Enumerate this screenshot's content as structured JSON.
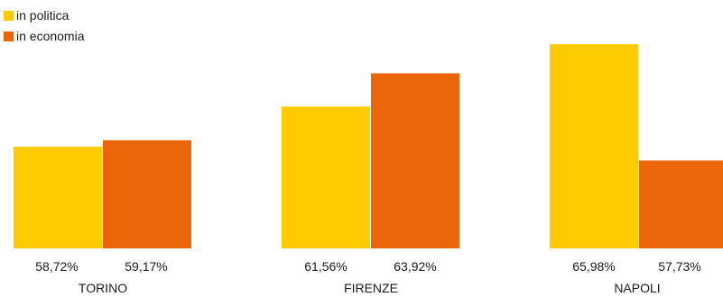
{
  "chart_data": {
    "type": "bar",
    "categories": [
      "TORINO",
      "FIRENZE",
      "NAPOLI"
    ],
    "series": [
      {
        "name": "in politica",
        "color": "#fecb00",
        "values": [
          58.72,
          61.56,
          65.98
        ],
        "labels": [
          "58,72%",
          "61,56%",
          "65,98%"
        ]
      },
      {
        "name": "in economia",
        "color": "#ea6608",
        "values": [
          59.17,
          63.92,
          57.73
        ],
        "labels": [
          "59,17%",
          "63,92%",
          "57,73%"
        ]
      }
    ],
    "ylim": [
      51.5,
      66.5
    ],
    "legend_position": "top-left",
    "grid": false
  }
}
